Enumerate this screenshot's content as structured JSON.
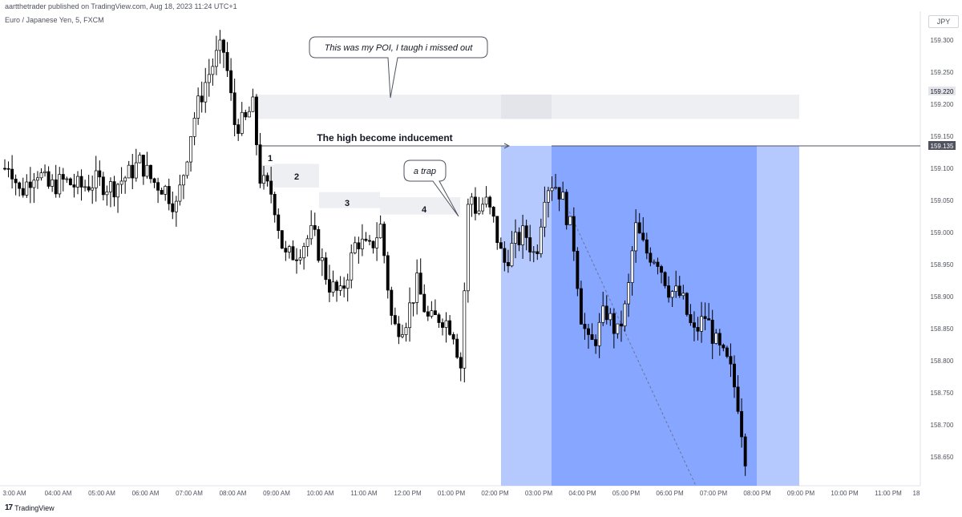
{
  "header": {
    "publish_line": "aartthetrader published on TradingView.com, Aug 18, 2023 11:24 UTC+1",
    "symbol_line": "Euro / Japanese Yen, 5, FXCM",
    "currency_badge": "JPY"
  },
  "footer": {
    "brand": "TradingView",
    "brand_icon": "tradingview-logo-icon"
  },
  "annotations": {
    "poi_callout": "This was my POI, I taugh i missed out",
    "inducement": "The high become inducement",
    "trap_callout": "a trap",
    "zone_labels": [
      "1",
      "2",
      "3",
      "4"
    ]
  },
  "colors": {
    "candle_body": "#ffffff",
    "candle_border": "#000000",
    "zone_fill": "#e9eaed",
    "target_zone": "#b2c7ff",
    "profit_zone": "#86a8ff",
    "price_line": "#50535e"
  },
  "price_labels": {
    "poi": "159.220",
    "inducement": "159.135"
  },
  "chart_data": {
    "type": "candlestick",
    "symbol": "Euro / Japanese Yen",
    "timeframe": "5",
    "y_axis": {
      "ticks": [
        "159.300",
        "159.250",
        "159.200",
        "159.150",
        "159.100",
        "159.050",
        "159.000",
        "158.950",
        "158.900",
        "158.850",
        "158.800",
        "158.750",
        "158.700",
        "158.650"
      ],
      "range": [
        158.61,
        159.33
      ]
    },
    "x_axis": {
      "ticks": [
        "3:00 AM",
        "04:00 AM",
        "05:00 AM",
        "06:00 AM",
        "07:00 AM",
        "08:00 AM",
        "09:00 AM",
        "10:00 AM",
        "11:00 AM",
        "12:00 PM",
        "01:00 PM",
        "02:00 PM",
        "03:00 PM",
        "04:00 PM",
        "05:00 PM",
        "06:00 PM",
        "07:00 PM",
        "08:00 PM",
        "09:00 PM",
        "10:00 PM",
        "11:00 PM",
        "18"
      ]
    },
    "price_anchors": [
      [
        0,
        159.09
      ],
      [
        12,
        159.11
      ],
      [
        25,
        159.06
      ],
      [
        45,
        159.1
      ],
      [
        60,
        159.07
      ],
      [
        80,
        159.08
      ],
      [
        100,
        159.07
      ],
      [
        120,
        159.08
      ],
      [
        140,
        159.07
      ],
      [
        160,
        159.09
      ],
      [
        175,
        159.11
      ],
      [
        190,
        159.08
      ],
      [
        205,
        159.07
      ],
      [
        220,
        159.04
      ],
      [
        230,
        159.1
      ],
      [
        240,
        159.17
      ],
      [
        255,
        159.23
      ],
      [
        268,
        159.27
      ],
      [
        278,
        159.29
      ],
      [
        285,
        159.24
      ],
      [
        292,
        159.17
      ],
      [
        305,
        159.17
      ],
      [
        315,
        159.2
      ],
      [
        325,
        159.08
      ],
      [
        340,
        159.06
      ],
      [
        355,
        158.96
      ],
      [
        370,
        158.97
      ],
      [
        390,
        159.0
      ],
      [
        410,
        158.92
      ],
      [
        425,
        158.9
      ],
      [
        445,
        158.99
      ],
      [
        460,
        158.97
      ],
      [
        475,
        159.01
      ],
      [
        490,
        158.85
      ],
      [
        505,
        158.86
      ],
      [
        520,
        158.92
      ],
      [
        535,
        158.86
      ],
      [
        550,
        158.87
      ],
      [
        565,
        158.85
      ],
      [
        575,
        158.79
      ],
      [
        585,
        159.07
      ],
      [
        595,
        159.03
      ],
      [
        605,
        159.05
      ],
      [
        615,
        159.02
      ],
      [
        628,
        158.95
      ],
      [
        640,
        158.98
      ],
      [
        655,
        159.0
      ],
      [
        668,
        158.96
      ],
      [
        680,
        159.07
      ],
      [
        690,
        159.08
      ],
      [
        700,
        159.06
      ],
      [
        715,
        158.99
      ],
      [
        725,
        158.87
      ],
      [
        735,
        158.82
      ],
      [
        745,
        158.84
      ],
      [
        755,
        158.88
      ],
      [
        770,
        158.84
      ],
      [
        782,
        158.89
      ],
      [
        792,
        159.01
      ],
      [
        805,
        158.97
      ],
      [
        820,
        158.96
      ],
      [
        835,
        158.91
      ],
      [
        850,
        158.9
      ],
      [
        865,
        158.84
      ],
      [
        880,
        158.87
      ],
      [
        895,
        158.82
      ],
      [
        910,
        158.79
      ],
      [
        920,
        158.74
      ],
      [
        930,
        158.65
      ],
      [
        932,
        158.61
      ]
    ],
    "zones": [
      {
        "name": "poi-zone",
        "from_time": "08:45 AM",
        "price_top": 159.215,
        "price_bottom": 159.177
      },
      {
        "name": "zone-1",
        "from_time": "09:00 AM",
        "price_top": 159.105,
        "price_bottom": 159.072
      },
      {
        "name": "zone-2",
        "from_time": "09:15 AM",
        "price_top": 159.107,
        "price_bottom": 159.07
      },
      {
        "name": "zone-3",
        "from_time": "10:15 AM",
        "price_top": 159.063,
        "price_bottom": 159.038
      },
      {
        "name": "zone-4",
        "from_time": "11:45 AM",
        "price_top": 159.055,
        "price_bottom": 159.028
      }
    ],
    "position_tool": {
      "entry_time": "03:30 PM",
      "price_top": 159.135,
      "price_bottom": 158.61
    }
  }
}
